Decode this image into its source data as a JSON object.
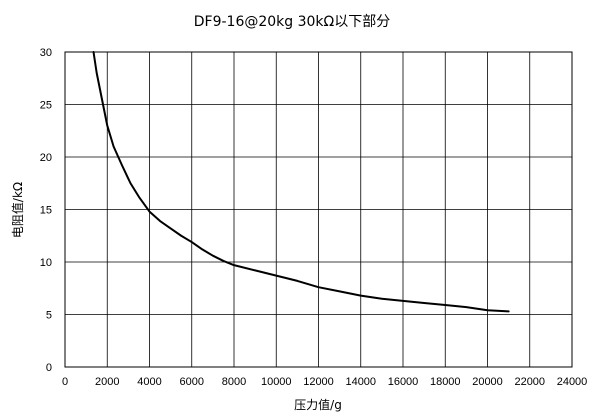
{
  "chart_data": {
    "type": "line",
    "title": "DF9-16@20kg  30kΩ以下部分",
    "xlabel": "压力值/g",
    "ylabel": "电阻值/kΩ",
    "xlim": [
      0,
      24000
    ],
    "ylim": [
      0,
      30
    ],
    "x_ticks": [
      0,
      2000,
      4000,
      6000,
      8000,
      10000,
      12000,
      14000,
      16000,
      18000,
      20000,
      22000,
      24000
    ],
    "y_ticks": [
      0,
      5,
      10,
      15,
      20,
      25,
      30
    ],
    "grid": true,
    "legend": "none",
    "series": [
      {
        "color": "#000000",
        "x": [
          1350,
          1500,
          1700,
          2000,
          2300,
          2700,
          3100,
          3500,
          4000,
          4500,
          5000,
          5500,
          6000,
          6500,
          7000,
          7500,
          8000,
          9000,
          10000,
          11000,
          12000,
          13000,
          14000,
          15000,
          16000,
          17000,
          18000,
          19000,
          20000,
          21000
        ],
        "y": [
          30,
          28,
          26,
          23,
          21,
          19.2,
          17.5,
          16.2,
          14.8,
          13.9,
          13.2,
          12.5,
          11.9,
          11.2,
          10.6,
          10.1,
          9.7,
          9.2,
          8.7,
          8.2,
          7.6,
          7.2,
          6.8,
          6.5,
          6.3,
          6.1,
          5.9,
          5.7,
          5.4,
          5.3
        ]
      }
    ]
  }
}
